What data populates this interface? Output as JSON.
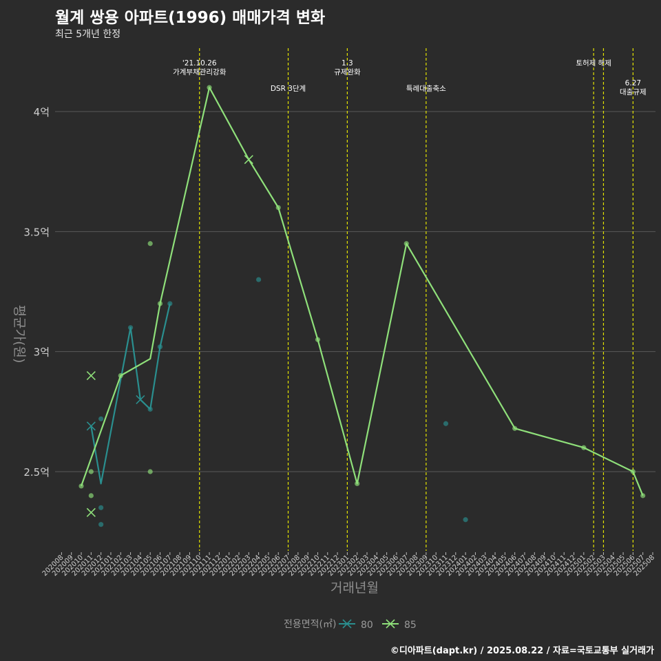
{
  "title": "월계 쌍용 아파트(1996) 매매가격 변화",
  "subtitle": "최근 5개년 한정",
  "footer": "©디아파트(dapt.kr) / 2025.08.22 / 자료=국토교통부 실거래가",
  "colors": {
    "background": "#2b2b2b",
    "grid": "#5a5a5a",
    "event_line": "#e5e500",
    "series_80": "#2a8f8f",
    "series_85": "#8fe07a"
  },
  "chart_data": {
    "type": "line",
    "title": "월계 쌍용 아파트(1996) 매매가격 변화",
    "subtitle": "최근 5개년 한정",
    "xlabel": "거래년월",
    "ylabel": "평균가(원)",
    "ylim": [
      2.2,
      4.25
    ],
    "yticks": [
      2.5,
      3.0,
      3.5,
      4.0
    ],
    "ytick_labels": [
      "2.5억",
      "3억",
      "3.5억",
      "4억"
    ],
    "x_categories": [
      "202008",
      "202009",
      "202010",
      "202011",
      "202012",
      "202101",
      "202102",
      "202103",
      "202104",
      "202105",
      "202106",
      "202107",
      "202108",
      "202109",
      "202110",
      "202111",
      "202112",
      "202201",
      "202202",
      "202203",
      "202204",
      "202205",
      "202206",
      "202207",
      "202208",
      "202209",
      "202210",
      "202211",
      "202212",
      "202301",
      "202302",
      "202303",
      "202304",
      "202305",
      "202306",
      "202307",
      "202308",
      "202309",
      "202310",
      "202311",
      "202312",
      "202401",
      "202402",
      "202403",
      "202404",
      "202405",
      "202406",
      "202407",
      "202408",
      "202409",
      "202410",
      "202411",
      "202412",
      "202501",
      "202502",
      "202503",
      "202504",
      "202505",
      "202506",
      "202507",
      "202508"
    ],
    "grid": true,
    "legend": {
      "title": "전용면적(㎡)",
      "position": "bottom",
      "entries": [
        "80",
        "85"
      ]
    },
    "events": [
      {
        "x": "202110",
        "label": [
          "'21.10.26",
          "가계부채관리강화"
        ],
        "label_row": "upper"
      },
      {
        "x": "202207",
        "label": [
          "DSR 3단계"
        ],
        "label_row": "lower"
      },
      {
        "x": "202301",
        "label": [
          "1.3",
          "규제완화"
        ],
        "label_row": "upper"
      },
      {
        "x": "202309",
        "label": [
          "특례대출축소"
        ],
        "label_row": "lower"
      },
      {
        "x": "202502",
        "label": [
          "토허제 해제"
        ],
        "label_row": "upper"
      },
      {
        "x": "202503",
        "label": [],
        "label_row": "none"
      },
      {
        "x": "202506",
        "label": [
          "6.27",
          "대출규제"
        ],
        "label_row": "lower"
      }
    ],
    "series": [
      {
        "name": "80",
        "color": "#2a8f8f",
        "line": [
          {
            "x": "202011",
            "y": 2.69
          },
          {
            "x": "202012",
            "y": 2.45
          },
          {
            "x": "202103",
            "y": 3.1
          },
          {
            "x": "202104",
            "y": 2.8
          },
          {
            "x": "202105",
            "y": 2.76
          },
          {
            "x": "202106",
            "y": 3.02
          },
          {
            "x": "202107",
            "y": 3.2
          }
        ],
        "points": [
          {
            "x": "202011",
            "y": 2.69,
            "shape": "x"
          },
          {
            "x": "202012",
            "y": 2.72
          },
          {
            "x": "202012",
            "y": 2.35
          },
          {
            "x": "202012",
            "y": 2.28
          },
          {
            "x": "202103",
            "y": 3.1
          },
          {
            "x": "202104",
            "y": 2.8,
            "shape": "x"
          },
          {
            "x": "202105",
            "y": 2.76
          },
          {
            "x": "202106",
            "y": 3.02
          },
          {
            "x": "202107",
            "y": 3.2
          },
          {
            "x": "202204",
            "y": 3.3
          },
          {
            "x": "202311",
            "y": 2.7
          },
          {
            "x": "202401",
            "y": 2.3
          }
        ]
      },
      {
        "name": "85",
        "color": "#8fe07a",
        "line": [
          {
            "x": "202010",
            "y": 2.44
          },
          {
            "x": "202102",
            "y": 2.9
          },
          {
            "x": "202105",
            "y": 2.97
          },
          {
            "x": "202106",
            "y": 3.2
          },
          {
            "x": "202111",
            "y": 4.1
          },
          {
            "x": "202203",
            "y": 3.8
          },
          {
            "x": "202206",
            "y": 3.6
          },
          {
            "x": "202210",
            "y": 3.05
          },
          {
            "x": "202302",
            "y": 2.45
          },
          {
            "x": "202307",
            "y": 3.45
          },
          {
            "x": "202406",
            "y": 2.68
          },
          {
            "x": "202501",
            "y": 2.6
          },
          {
            "x": "202506",
            "y": 2.5
          },
          {
            "x": "202507",
            "y": 2.4
          }
        ],
        "points": [
          {
            "x": "202010",
            "y": 2.44
          },
          {
            "x": "202011",
            "y": 2.9,
            "shape": "x"
          },
          {
            "x": "202011",
            "y": 2.5
          },
          {
            "x": "202011",
            "y": 2.4
          },
          {
            "x": "202011",
            "y": 2.33,
            "shape": "x"
          },
          {
            "x": "202102",
            "y": 2.9
          },
          {
            "x": "202105",
            "y": 3.45
          },
          {
            "x": "202105",
            "y": 2.5
          },
          {
            "x": "202106",
            "y": 3.2
          },
          {
            "x": "202111",
            "y": 4.1
          },
          {
            "x": "202203",
            "y": 3.8,
            "shape": "x"
          },
          {
            "x": "202206",
            "y": 3.6
          },
          {
            "x": "202210",
            "y": 3.05
          },
          {
            "x": "202302",
            "y": 2.45
          },
          {
            "x": "202307",
            "y": 3.45
          },
          {
            "x": "202406",
            "y": 2.68
          },
          {
            "x": "202501",
            "y": 2.6
          },
          {
            "x": "202506",
            "y": 2.5
          },
          {
            "x": "202507",
            "y": 2.4
          }
        ]
      }
    ]
  }
}
